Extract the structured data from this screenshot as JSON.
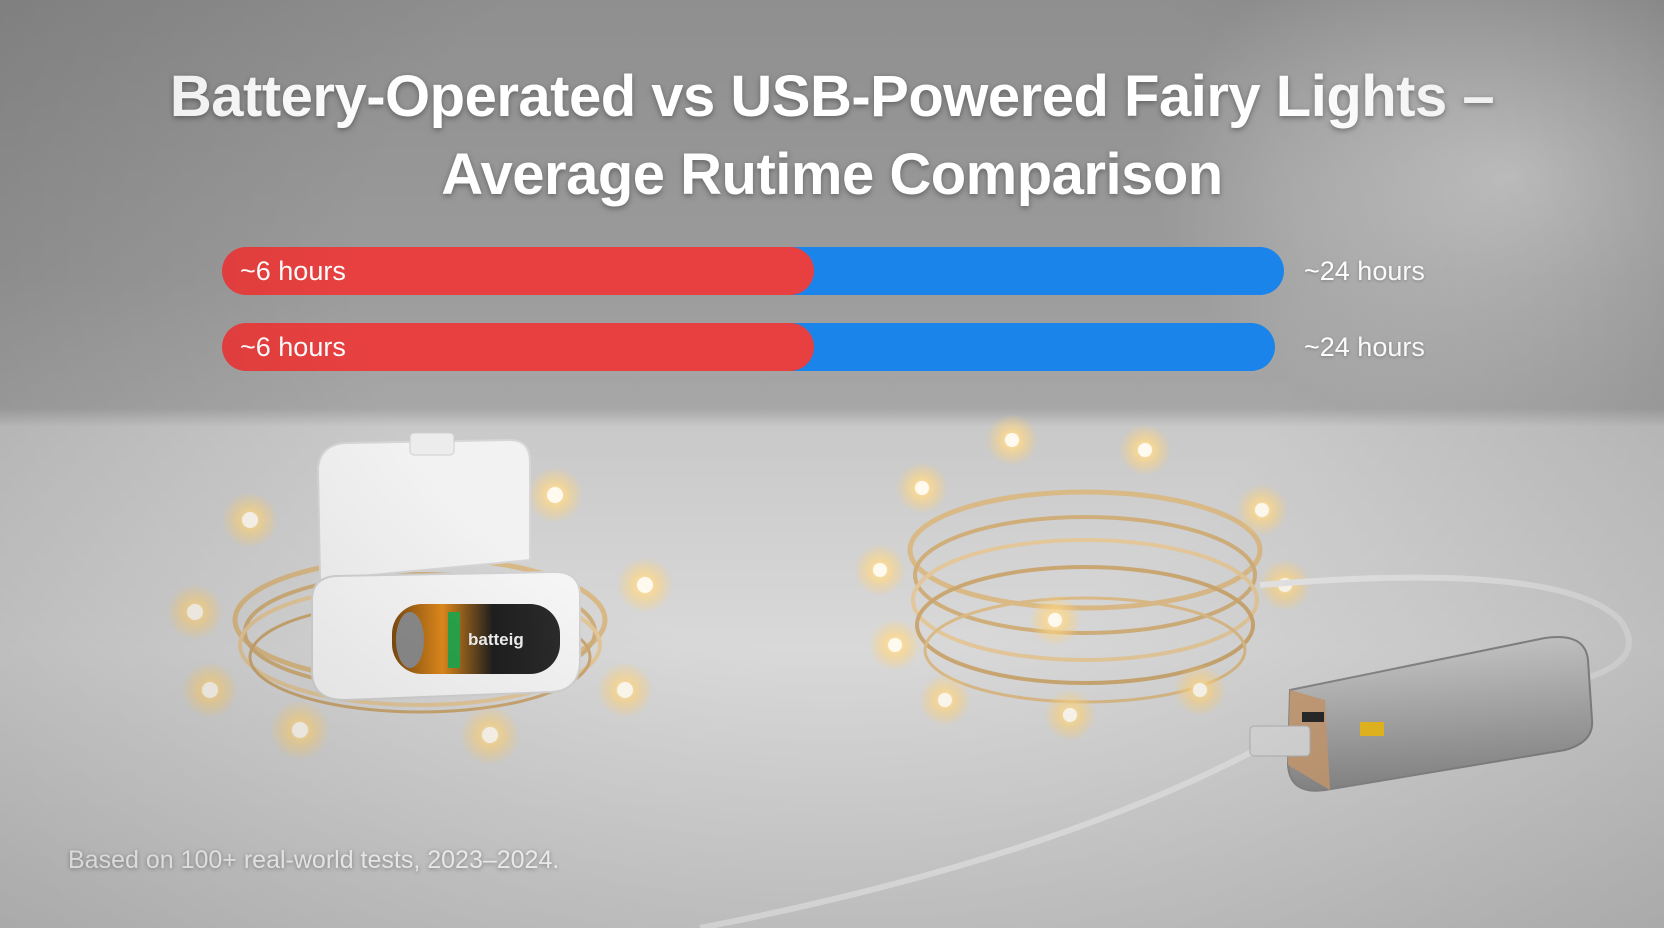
{
  "chart_data": {
    "type": "bar",
    "title": "Battery-Operated vs USB-Powered Fairy Lights – Average Rutime Comparison",
    "title_lines": [
      "Battery-Operated vs USB-Powered Fairy Lights –",
      "Average Rutime Comparison"
    ],
    "orientation": "horizontal",
    "stacked_comparison": true,
    "rows": [
      {
        "battery_hours": 6,
        "usb_hours": 24,
        "left_label": "~6 hours",
        "right_label": "~24 hours"
      },
      {
        "battery_hours": 6,
        "usb_hours": 24,
        "left_label": "~6 hours",
        "right_label": "~24 hours"
      }
    ],
    "colors": {
      "battery": "#e84040",
      "usb": "#1a84ea"
    },
    "footnote": "Based on 100+ real-world tests, 2023–2024.",
    "illustration_text": {
      "battery_label": "batteig"
    }
  }
}
